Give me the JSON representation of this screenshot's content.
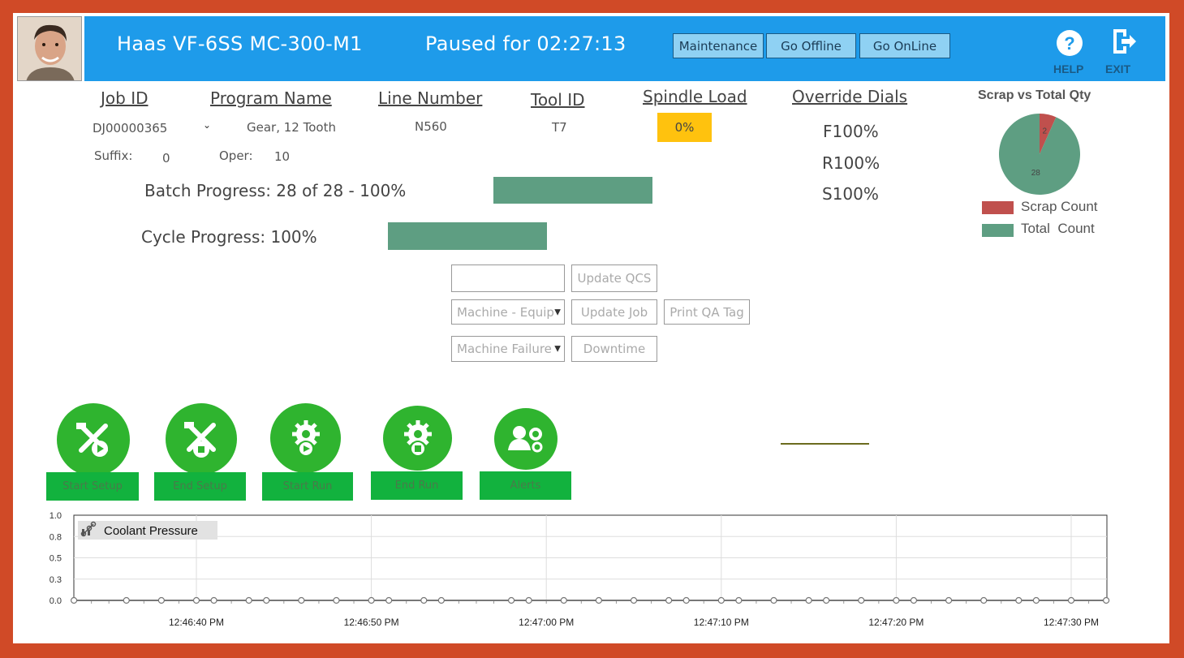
{
  "header": {
    "machine_title": "Haas VF-6SS MC-300-M1",
    "status_text": "Paused for 02:27:13",
    "buttons": {
      "maintenance": "Maintenance",
      "go_offline": "Go Offline",
      "go_online": "Go OnLine"
    },
    "help_label": "HELP",
    "exit_label": "EXIT",
    "bg_color": "#1e9bea"
  },
  "job": {
    "headers": {
      "job_id": "Job ID",
      "program_name": "Program Name",
      "line_number": "Line Number",
      "tool_id": "Tool ID",
      "spindle_load": "Spindle Load",
      "override_dials": "Override Dials"
    },
    "job_id_value": "DJ00000365",
    "program_name_value": "Gear, 12 Tooth",
    "line_number_value": "N560",
    "tool_id_value": "T7",
    "spindle_load_value": "0%",
    "suffix_label": "Suffix:",
    "suffix_value": "0",
    "oper_label": "Oper:",
    "oper_value": "10",
    "dials": [
      "F100%",
      "R100%",
      "S100%"
    ]
  },
  "progress": {
    "batch_label": "Batch Progress: 28 of 28 - 100%",
    "batch_fraction": 1.0,
    "cycle_label": "Cycle Progress: 100%",
    "cycle_fraction": 1.0
  },
  "controls": {
    "qcs_input_value": "",
    "update_qcs": "Update QCS",
    "machine_select": "Machine - Equip",
    "update_job": "Update Job",
    "print_qa_tag": "Print QA Tag",
    "failure_select": "Machine Failure",
    "downtime": "Downtime"
  },
  "actions": [
    {
      "label": "Start Setup",
      "icon": "tools-play-icon"
    },
    {
      "label": "End Setup",
      "icon": "tools-stop-icon"
    },
    {
      "label": "Start Run",
      "icon": "gear-play-icon"
    },
    {
      "label": "End Run",
      "icon": "gear-stop-icon"
    },
    {
      "label": "Alerts",
      "icon": "user-gears-icon"
    }
  ],
  "pie": {
    "title": "Scrap vs Total Qty",
    "scrap_label": "Scrap Count",
    "total_label": "Total  Count",
    "scrap_value": 2,
    "total_value": 28,
    "scrap_color": "#c0504d",
    "total_color": "#5e9e82"
  },
  "chart_data": {
    "type": "line",
    "series": [
      {
        "name": "Coolant Pressure",
        "x_seconds_after_first_tick": [
          -7,
          -4,
          -2,
          0,
          1,
          3,
          4,
          6,
          8,
          10,
          11,
          13,
          14,
          18,
          19,
          21,
          23,
          25,
          27,
          28,
          30,
          31,
          33,
          35,
          36,
          38,
          40,
          41,
          43,
          45,
          47,
          48,
          50,
          52
        ],
        "values": [
          0,
          0,
          0,
          0,
          0,
          0,
          0,
          0,
          0,
          0,
          0,
          0,
          0,
          0,
          0,
          0,
          0,
          0,
          0,
          0,
          0,
          0,
          0,
          0,
          0,
          0,
          0,
          0,
          0,
          0,
          0,
          0,
          0,
          0
        ]
      }
    ],
    "x_tick_labels": [
      "12:46:40 PM",
      "12:46:50 PM",
      "12:47:00 PM",
      "12:47:10 PM",
      "12:47:20 PM",
      "12:47:30 PM"
    ],
    "y_tick_labels": [
      "1.0",
      "0.8",
      "0.5",
      "0.3",
      "0.0"
    ],
    "ylim": [
      0,
      1
    ],
    "grid": true,
    "legend_placement": "top-left"
  }
}
